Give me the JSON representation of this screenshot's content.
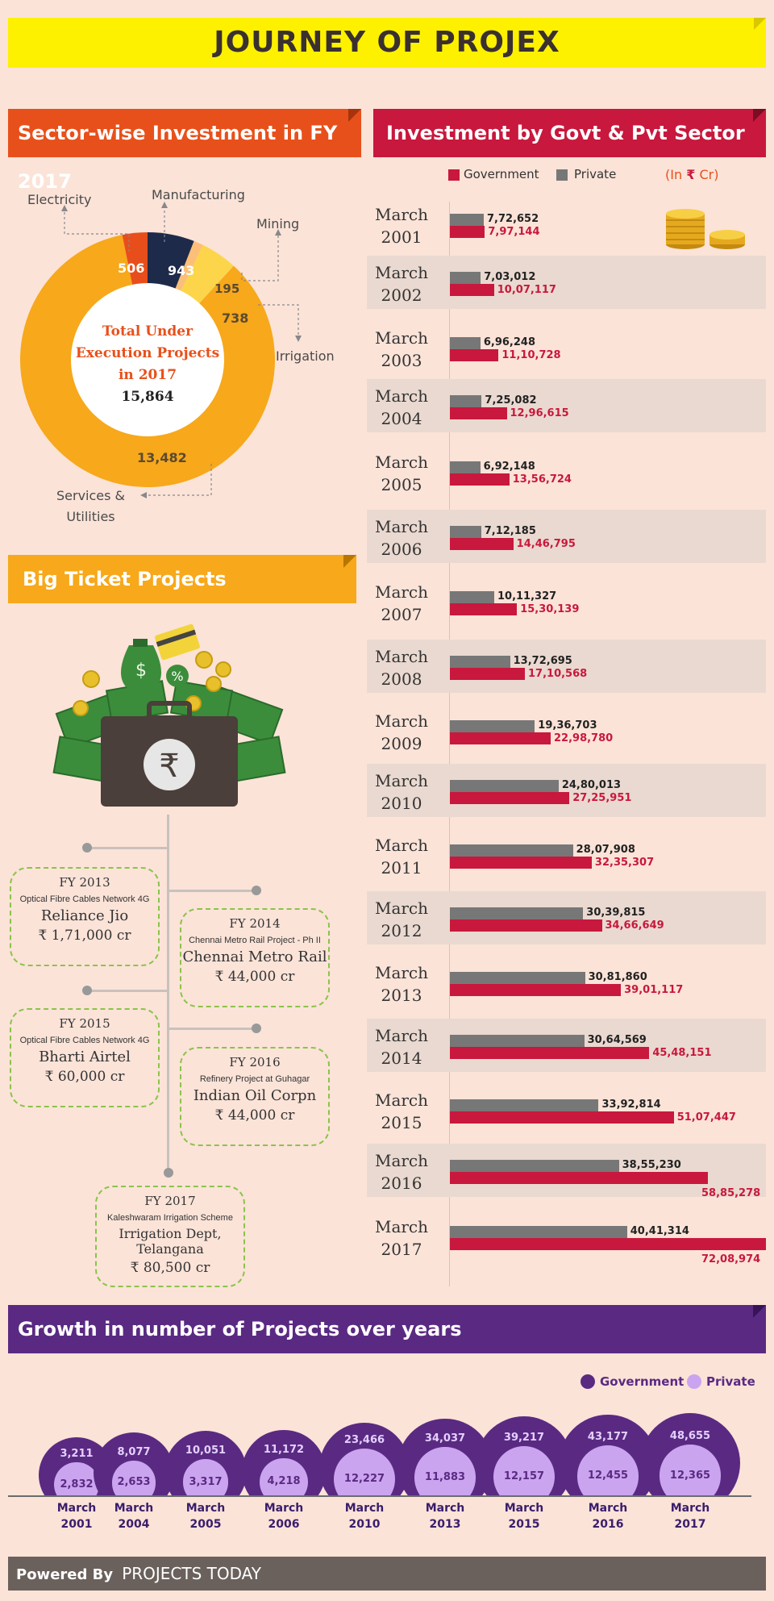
{
  "title": "JOURNEY OF PROJEX",
  "sector": {
    "heading": "Sector-wise Investment in FY 2017",
    "center_label": "Total Under Execution Projects in 2017",
    "center_line1": "Total Under",
    "center_line2": "Execution Projects",
    "center_line3": "in 2017",
    "center_value": "15,864",
    "segments": [
      {
        "name": "Manufacturing",
        "value": "943",
        "color": "#1e2a4a"
      },
      {
        "name": "Mining",
        "value": "195",
        "color": "#fbbf78"
      },
      {
        "name": "Irrigation",
        "value": "738",
        "color": "#fcd54a"
      },
      {
        "name": "Services & Utilities",
        "value": "13,482",
        "color": "#f7a81b"
      },
      {
        "name": "Electricity",
        "value": "506",
        "color": "#e84e1b"
      }
    ],
    "labels": {
      "electricity": "Electricity",
      "manufacturing": "Manufacturing",
      "mining": "Mining",
      "irrigation": "Irrigation",
      "services_line1": "Services &",
      "services_line2": "Utilities"
    }
  },
  "investment": {
    "heading": "Investment by Govt & Pvt Sector",
    "legend_gov": "Government",
    "legend_pvt": "Private",
    "unit_prefix": "(In",
    "unit_symbol": "₹",
    "unit_suffix": "Cr)",
    "colors": {
      "gov": "#c8183d",
      "pvt": "#777777"
    },
    "rows": [
      {
        "month": "March",
        "year": "2001",
        "pvt": "7,72,652",
        "gov": "7,97,144",
        "pvt_n": 772652,
        "gov_n": 797144
      },
      {
        "month": "March",
        "year": "2002",
        "pvt": "7,03,012",
        "gov": "10,07,117",
        "pvt_n": 703012,
        "gov_n": 1007117
      },
      {
        "month": "March",
        "year": "2003",
        "pvt": "6,96,248",
        "gov": "11,10,728",
        "pvt_n": 696248,
        "gov_n": 1110728
      },
      {
        "month": "March",
        "year": "2004",
        "pvt": "7,25,082",
        "gov": "12,96,615",
        "pvt_n": 725082,
        "gov_n": 1296615
      },
      {
        "month": "March",
        "year": "2005",
        "pvt": "6,92,148",
        "gov": "13,56,724",
        "pvt_n": 692148,
        "gov_n": 1356724
      },
      {
        "month": "March",
        "year": "2006",
        "pvt": "7,12,185",
        "gov": "14,46,795",
        "pvt_n": 712185,
        "gov_n": 1446795
      },
      {
        "month": "March",
        "year": "2007",
        "pvt": "10,11,327",
        "gov": "15,30,139",
        "pvt_n": 1011327,
        "gov_n": 1530139
      },
      {
        "month": "March",
        "year": "2008",
        "pvt": "13,72,695",
        "gov": "17,10,568",
        "pvt_n": 1372695,
        "gov_n": 1710568
      },
      {
        "month": "March",
        "year": "2009",
        "pvt": "19,36,703",
        "gov": "22,98,780",
        "pvt_n": 1936703,
        "gov_n": 2298780
      },
      {
        "month": "March",
        "year": "2010",
        "pvt": "24,80,013",
        "gov": "27,25,951",
        "pvt_n": 2480013,
        "gov_n": 2725951
      },
      {
        "month": "March",
        "year": "2011",
        "pvt": "28,07,908",
        "gov": "32,35,307",
        "pvt_n": 2807908,
        "gov_n": 3235307
      },
      {
        "month": "March",
        "year": "2012",
        "pvt": "30,39,815",
        "gov": "34,66,649",
        "pvt_n": 3039815,
        "gov_n": 3466649
      },
      {
        "month": "March",
        "year": "2013",
        "pvt": "30,81,860",
        "gov": "39,01,117",
        "pvt_n": 3081860,
        "gov_n": 3901117
      },
      {
        "month": "March",
        "year": "2014",
        "pvt": "30,64,569",
        "gov": "45,48,151",
        "pvt_n": 3064569,
        "gov_n": 4548151
      },
      {
        "month": "March",
        "year": "2015",
        "pvt": "33,92,814",
        "gov": "51,07,447",
        "pvt_n": 3392814,
        "gov_n": 5107447
      },
      {
        "month": "March",
        "year": "2016",
        "pvt": "38,55,230",
        "gov": "58,85,278",
        "pvt_n": 3855230,
        "gov_n": 5885278
      },
      {
        "month": "March",
        "year": "2017",
        "pvt": "40,41,314",
        "gov": "72,08,974",
        "pvt_n": 4041314,
        "gov_n": 7208974
      }
    ]
  },
  "big_ticket": {
    "heading": "Big Ticket Projects",
    "projects": [
      {
        "fy": "FY 2013",
        "desc": "Optical Fibre Cables Network 4G",
        "name": "Reliance Jio",
        "cost": "₹ 1,71,000 cr"
      },
      {
        "fy": "FY 2014",
        "desc": "Chennai Metro Rail Project - Ph II",
        "name": "Chennai Metro Rail",
        "cost": "₹ 44,000 cr"
      },
      {
        "fy": "FY 2015",
        "desc": "Optical Fibre Cables Network 4G",
        "name": "Bharti Airtel",
        "cost": "₹ 60,000 cr"
      },
      {
        "fy": "FY 2016",
        "desc": "Refinery Project at Guhagar",
        "name": "Indian Oil Corpn",
        "cost": "₹ 44,000 cr"
      },
      {
        "fy": "FY 2017",
        "desc": "Kaleshwaram Irrigation Scheme",
        "name": "Irrigation Dept, Telangana",
        "cost": "₹  80,500 cr"
      }
    ]
  },
  "growth": {
    "heading": "Growth in number of Projects over years",
    "legend_gov": "Government",
    "legend_pvt": "Private",
    "colors": {
      "gov": "#5a2a82",
      "pvt": "#cba4f0"
    },
    "items": [
      {
        "month": "March",
        "year": "2001",
        "gov": "3,211",
        "pvt": "2,832",
        "gov_n": 3211,
        "pvt_n": 2832
      },
      {
        "month": "March",
        "year": "2004",
        "gov": "8,077",
        "pvt": "2,653",
        "gov_n": 8077,
        "pvt_n": 2653
      },
      {
        "month": "March",
        "year": "2005",
        "gov": "10,051",
        "pvt": "3,317",
        "gov_n": 10051,
        "pvt_n": 3317
      },
      {
        "month": "March",
        "year": "2006",
        "gov": "11,172",
        "pvt": "4,218",
        "gov_n": 11172,
        "pvt_n": 4218
      },
      {
        "month": "March",
        "year": "2010",
        "gov": "23,466",
        "pvt": "12,227",
        "gov_n": 23466,
        "pvt_n": 12227
      },
      {
        "month": "March",
        "year": "2013",
        "gov": "34,037",
        "pvt": "11,883",
        "gov_n": 34037,
        "pvt_n": 11883
      },
      {
        "month": "March",
        "year": "2015",
        "gov": "39,217",
        "pvt": "12,157",
        "gov_n": 39217,
        "pvt_n": 12157
      },
      {
        "month": "March",
        "year": "2016",
        "gov": "43,177",
        "pvt": "12,455",
        "gov_n": 43177,
        "pvt_n": 12455
      },
      {
        "month": "March",
        "year": "2017",
        "gov": "48,655",
        "pvt": "12,365",
        "gov_n": 48655,
        "pvt_n": 12365
      }
    ]
  },
  "footer": {
    "powered": "Powered By",
    "brand": "PROJECTS TODAY"
  }
}
